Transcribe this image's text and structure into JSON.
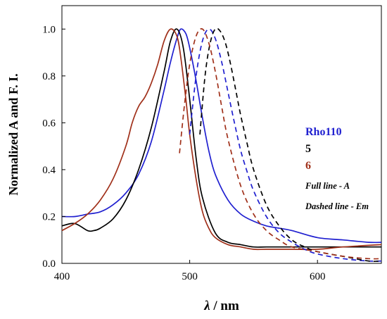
{
  "chart_data": {
    "type": "line",
    "xlabel": "λ / nm",
    "xlabel_symbol": "λ",
    "xlabel_unit": " / nm",
    "ylabel": "Normalized A and F. I.",
    "xlim": [
      400,
      650
    ],
    "ylim": [
      0.0,
      1.1
    ],
    "xticks": [
      400,
      500,
      600
    ],
    "yticks": [
      0.0,
      0.2,
      0.4,
      0.6,
      0.8,
      1.0
    ],
    "xtick_labels": [
      "400",
      "500",
      "600"
    ],
    "ytick_labels": [
      "0.0",
      "0.2",
      "0.4",
      "0.6",
      "0.8",
      "1.0"
    ],
    "grid": false,
    "legend": {
      "placement": "right",
      "entries": [
        {
          "label": "Rho110",
          "color": "#2020d0"
        },
        {
          "label": "5",
          "color": "#000000"
        },
        {
          "label": "6",
          "color": "#a0301a"
        }
      ],
      "notes": [
        "Full line - A",
        "Dashed line - Em"
      ]
    },
    "series": [
      {
        "key": "rho110_abs",
        "color": "#2020d0",
        "dash": false,
        "x": [
          400,
          410,
          420,
          430,
          440,
          450,
          460,
          470,
          480,
          485,
          490,
          493,
          497,
          500,
          505,
          510,
          515,
          520,
          530,
          540,
          550,
          560,
          570,
          580,
          600,
          620,
          640,
          650
        ],
        "y": [
          0.2,
          0.2,
          0.21,
          0.22,
          0.25,
          0.3,
          0.38,
          0.52,
          0.74,
          0.86,
          0.96,
          1.0,
          0.98,
          0.92,
          0.78,
          0.62,
          0.48,
          0.38,
          0.27,
          0.21,
          0.18,
          0.16,
          0.15,
          0.14,
          0.11,
          0.1,
          0.09,
          0.09
        ]
      },
      {
        "key": "compound5_abs",
        "color": "#000000",
        "dash": false,
        "x": [
          400,
          410,
          420,
          425,
          430,
          440,
          450,
          460,
          470,
          480,
          485,
          490,
          495,
          500,
          505,
          510,
          520,
          530,
          540,
          550,
          560,
          580,
          600,
          620,
          650
        ],
        "y": [
          0.16,
          0.17,
          0.14,
          0.14,
          0.15,
          0.19,
          0.27,
          0.4,
          0.58,
          0.82,
          0.95,
          1.0,
          0.92,
          0.7,
          0.45,
          0.28,
          0.13,
          0.09,
          0.08,
          0.07,
          0.07,
          0.07,
          0.07,
          0.07,
          0.07
        ]
      },
      {
        "key": "compound6_abs",
        "color": "#a0301a",
        "dash": false,
        "x": [
          400,
          410,
          420,
          430,
          440,
          450,
          455,
          460,
          465,
          470,
          475,
          480,
          485,
          490,
          493,
          497,
          500,
          505,
          510,
          515,
          520,
          530,
          540,
          550,
          560,
          580,
          600,
          620,
          650
        ],
        "y": [
          0.14,
          0.17,
          0.21,
          0.27,
          0.36,
          0.5,
          0.6,
          0.67,
          0.71,
          0.77,
          0.85,
          0.95,
          1.0,
          0.97,
          0.88,
          0.7,
          0.55,
          0.36,
          0.22,
          0.15,
          0.11,
          0.08,
          0.07,
          0.06,
          0.06,
          0.06,
          0.06,
          0.07,
          0.08
        ]
      },
      {
        "key": "rho110_em",
        "color": "#2020d0",
        "dash": true,
        "x": [
          500,
          505,
          510,
          515,
          520,
          525,
          530,
          535,
          540,
          545,
          550,
          560,
          570,
          580,
          590,
          600,
          620,
          640,
          650
        ],
        "y": [
          0.55,
          0.8,
          0.95,
          1.0,
          0.96,
          0.86,
          0.73,
          0.6,
          0.48,
          0.39,
          0.31,
          0.2,
          0.13,
          0.09,
          0.06,
          0.04,
          0.02,
          0.01,
          0.01
        ]
      },
      {
        "key": "compound5_em",
        "color": "#000000",
        "dash": true,
        "x": [
          508,
          512,
          516,
          520,
          524,
          528,
          532,
          536,
          540,
          545,
          550,
          560,
          570,
          580,
          590,
          600,
          620,
          640,
          650
        ],
        "y": [
          0.55,
          0.8,
          0.94,
          1.0,
          0.99,
          0.94,
          0.85,
          0.74,
          0.63,
          0.51,
          0.4,
          0.25,
          0.16,
          0.1,
          0.07,
          0.05,
          0.03,
          0.01,
          0.01
        ]
      },
      {
        "key": "compound6_em",
        "color": "#a0301a",
        "dash": true,
        "x": [
          492,
          496,
          500,
          505,
          510,
          515,
          520,
          525,
          530,
          540,
          550,
          560,
          570,
          580,
          600,
          620,
          640,
          650
        ],
        "y": [
          0.47,
          0.68,
          0.85,
          0.97,
          1.0,
          0.94,
          0.82,
          0.67,
          0.53,
          0.33,
          0.21,
          0.14,
          0.1,
          0.07,
          0.05,
          0.03,
          0.02,
          0.02
        ]
      }
    ]
  }
}
